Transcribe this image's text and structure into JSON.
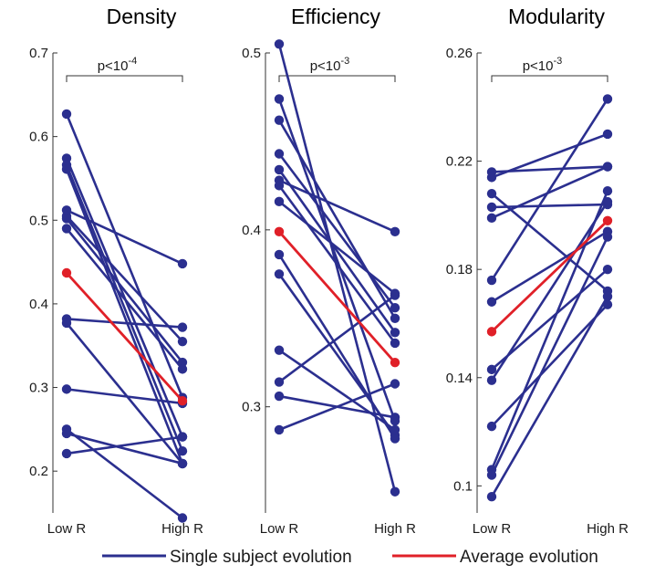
{
  "chart_data": [
    {
      "type": "line",
      "title": "Density",
      "categories": [
        "Low R",
        "High R"
      ],
      "ylim": [
        0.15,
        0.7
      ],
      "yticks": [
        0.2,
        0.3,
        0.4,
        0.5,
        0.6,
        0.7
      ],
      "ytick_labels": [
        "0.2",
        "0.3",
        "0.4",
        "0.5",
        "0.6",
        "0.7"
      ],
      "significance": {
        "text": "p<10",
        "exponent": "-4"
      },
      "subjects": [
        [
          0.627,
          0.288
        ],
        [
          0.574,
          0.241
        ],
        [
          0.566,
          0.224
        ],
        [
          0.561,
          0.209
        ],
        [
          0.512,
          0.448
        ],
        [
          0.505,
          0.355
        ],
        [
          0.502,
          0.33
        ],
        [
          0.49,
          0.322
        ],
        [
          0.382,
          0.372
        ],
        [
          0.377,
          0.209
        ],
        [
          0.298,
          0.281
        ],
        [
          0.25,
          0.144
        ],
        [
          0.245,
          0.209
        ],
        [
          0.221,
          0.241
        ]
      ],
      "average": [
        0.437,
        0.284
      ]
    },
    {
      "type": "line",
      "title": "Efficiency",
      "categories": [
        "Low R",
        "High R"
      ],
      "ylim": [
        0.24,
        0.55
      ],
      "yticks": [
        0.3,
        0.4,
        0.5
      ],
      "ytick_labels": [
        "0.3",
        "0.4",
        "0.5"
      ],
      "significance": {
        "text": "p<10",
        "exponent": "-3"
      },
      "subjects": [
        [
          0.505,
          0.252
        ],
        [
          0.474,
          0.292
        ],
        [
          0.462,
          0.35
        ],
        [
          0.443,
          0.356
        ],
        [
          0.434,
          0.342
        ],
        [
          0.428,
          0.399
        ],
        [
          0.425,
          0.336
        ],
        [
          0.416,
          0.364
        ],
        [
          0.386,
          0.282
        ],
        [
          0.375,
          0.284
        ],
        [
          0.332,
          0.287
        ],
        [
          0.314,
          0.363
        ],
        [
          0.306,
          0.294
        ],
        [
          0.287,
          0.313
        ]
      ],
      "average": [
        0.399,
        0.325
      ]
    },
    {
      "type": "line",
      "title": "Modularity",
      "categories": [
        "Low R",
        "High R"
      ],
      "ylim": [
        0.09,
        0.26
      ],
      "yticks": [
        0.1,
        0.14,
        0.18,
        0.22,
        0.26
      ],
      "ytick_labels": [
        "0.1",
        "0.14",
        "0.18",
        "0.22",
        "0.26"
      ],
      "significance": {
        "text": "p<10",
        "exponent": "-3"
      },
      "subjects": [
        [
          0.216,
          0.218
        ],
        [
          0.214,
          0.23
        ],
        [
          0.208,
          0.172
        ],
        [
          0.203,
          0.204
        ],
        [
          0.199,
          0.218
        ],
        [
          0.176,
          0.243
        ],
        [
          0.168,
          0.194
        ],
        [
          0.143,
          0.18
        ],
        [
          0.139,
          0.205
        ],
        [
          0.122,
          0.167
        ],
        [
          0.106,
          0.209
        ],
        [
          0.104,
          0.192
        ],
        [
          0.096,
          0.17
        ]
      ],
      "average": [
        0.157,
        0.198
      ]
    }
  ],
  "legend": {
    "items": [
      {
        "label": "Single subject evolution",
        "color": "#2b2f8f"
      },
      {
        "label": "Average evolution",
        "color": "#e02028"
      }
    ]
  },
  "colors": {
    "subject": "#2b2f8f",
    "average": "#e02028",
    "axis": "#333333"
  }
}
